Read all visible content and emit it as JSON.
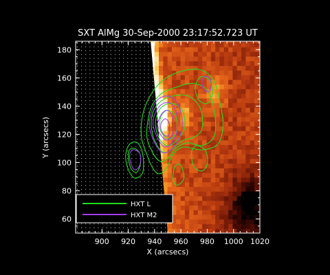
{
  "chart_data": {
    "type": "heatmap",
    "title": "SXT AlMg 30-Sep-2000 23:17:52.723 UT",
    "xlabel": "X (arcsecs)",
    "ylabel": "Y (arcsecs)",
    "xlim": [
      880,
      1020
    ],
    "ylim": [
      50,
      186
    ],
    "x_ticks": [
      900,
      920,
      940,
      960,
      980,
      1000,
      1020
    ],
    "y_ticks": [
      60,
      80,
      100,
      120,
      140,
      160,
      180
    ],
    "x_tick_labels": [
      "900",
      "920",
      "940",
      "960",
      "980",
      "1000",
      "1020"
    ],
    "y_tick_labels": [
      "60",
      "80",
      "100",
      "120",
      "140",
      "160",
      "180"
    ],
    "grid": false,
    "legend_position": "bottom-left",
    "colormap": [
      "#000000",
      "#3a0802",
      "#7a1c08",
      "#b83a10",
      "#e4641a",
      "#f79a28",
      "#ffd063",
      "#ffffff"
    ],
    "limb_boundary": [
      [
        937,
        186
      ],
      [
        950,
        50
      ]
    ],
    "series": [
      {
        "name": "HXT L",
        "color": "#22dd22",
        "contours": [
          [
            [
              930,
              118
            ],
            [
              934,
              106
            ],
            [
              938,
              97
            ],
            [
              943,
              92
            ],
            [
              949,
              96
            ],
            [
              954,
              106
            ],
            [
              962,
              111
            ],
            [
              976,
              109
            ],
            [
              988,
              113
            ],
            [
              992,
              126
            ],
            [
              990,
              141
            ],
            [
              985,
              158
            ],
            [
              974,
              166
            ],
            [
              958,
              164
            ],
            [
              946,
              158
            ],
            [
              937,
              148
            ],
            [
              931,
              134
            ]
          ],
          [
            [
              934,
              120
            ],
            [
              938,
              108
            ],
            [
              944,
              101
            ],
            [
              950,
              103
            ],
            [
              956,
              110
            ],
            [
              965,
              114
            ],
            [
              976,
              112
            ],
            [
              985,
              118
            ],
            [
              986,
              132
            ],
            [
              981,
              150
            ],
            [
              970,
              156
            ],
            [
              955,
              153
            ],
            [
              944,
              148
            ],
            [
              937,
              138
            ]
          ],
          [
            [
              938,
              122
            ],
            [
              942,
              112
            ],
            [
              948,
              107
            ],
            [
              955,
              111
            ],
            [
              962,
              116
            ],
            [
              970,
              118
            ],
            [
              976,
              124
            ],
            [
              975,
              138
            ],
            [
              966,
              147
            ],
            [
              953,
              147
            ],
            [
              943,
              142
            ],
            [
              938,
              133
            ]
          ],
          [
            [
              941,
              124
            ],
            [
              945,
              115
            ],
            [
              951,
              112
            ],
            [
              958,
              117
            ],
            [
              963,
              125
            ],
            [
              961,
              137
            ],
            [
              953,
              142
            ],
            [
              945,
              139
            ],
            [
              941,
              131
            ]
          ],
          [
            [
              944,
              124
            ],
            [
              948,
              118
            ],
            [
              953,
              117
            ],
            [
              957,
              123
            ],
            [
              956,
              133
            ],
            [
              950,
              137
            ],
            [
              945,
              133
            ]
          ],
          [
            [
              955,
              96
            ],
            [
              954,
              88
            ],
            [
              957,
              84
            ],
            [
              962,
              88
            ],
            [
              961,
              96
            ],
            [
              958,
              99
            ]
          ],
          [
            [
              918,
              105
            ],
            [
              920,
              95
            ],
            [
              925,
              89
            ],
            [
              931,
              93
            ],
            [
              931,
              106
            ],
            [
              927,
              114
            ],
            [
              921,
              113
            ]
          ],
          [
            [
              920,
              104
            ],
            [
              922,
              96
            ],
            [
              926,
              93
            ],
            [
              929,
              98
            ],
            [
              929,
              106
            ],
            [
              925,
              110
            ],
            [
              921,
              109
            ]
          ],
          [
            [
              968,
              105
            ],
            [
              970,
              97
            ],
            [
              976,
              94
            ],
            [
              980,
              99
            ],
            [
              979,
              108
            ],
            [
              973,
              112
            ],
            [
              969,
              110
            ]
          ],
          [
            [
              971,
              151
            ],
            [
              974,
              144
            ],
            [
              980,
              142
            ],
            [
              984,
              149
            ],
            [
              982,
              158
            ],
            [
              976,
              161
            ],
            [
              972,
              157
            ]
          ]
        ]
      },
      {
        "name": "HXT M2",
        "color": "#a23cf0",
        "contours": [
          [
            [
              936,
              126
            ],
            [
              940,
              114
            ],
            [
              946,
              107
            ],
            [
              952,
              109
            ],
            [
              958,
              116
            ],
            [
              961,
              128
            ],
            [
              958,
              141
            ],
            [
              951,
              147
            ],
            [
              943,
              145
            ],
            [
              938,
              137
            ]
          ],
          [
            [
              939,
              126
            ],
            [
              943,
              116
            ],
            [
              948,
              111
            ],
            [
              953,
              114
            ],
            [
              957,
              122
            ],
            [
              957,
              134
            ],
            [
              952,
              142
            ],
            [
              945,
              141
            ],
            [
              940,
              134
            ]
          ],
          [
            [
              942,
              125
            ],
            [
              946,
              118
            ],
            [
              950,
              116
            ],
            [
              954,
              121
            ],
            [
              954,
              131
            ],
            [
              950,
              137
            ],
            [
              945,
              134
            ]
          ],
          [
            [
              945,
              123
            ],
            [
              948,
              119
            ],
            [
              951,
              120
            ],
            [
              951,
              128
            ],
            [
              948,
              131
            ],
            [
              945,
              128
            ]
          ],
          [
            [
              921,
              104
            ],
            [
              923,
              97
            ],
            [
              926,
              95
            ],
            [
              929,
              99
            ],
            [
              929,
              106
            ],
            [
              925,
              109
            ],
            [
              922,
              108
            ]
          ],
          [
            [
              976,
              156
            ],
            [
              978,
              151
            ],
            [
              982,
              151
            ],
            [
              983,
              157
            ],
            [
              980,
              161
            ],
            [
              977,
              160
            ]
          ]
        ]
      }
    ]
  }
}
